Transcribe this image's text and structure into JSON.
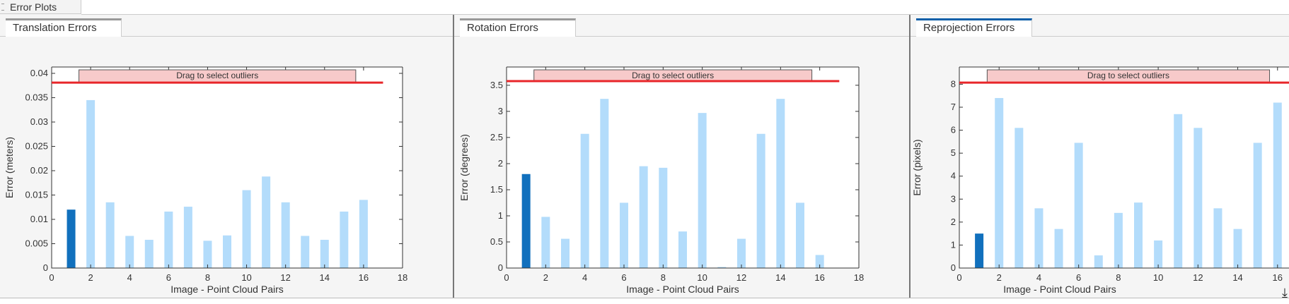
{
  "window": {
    "top_tab": "Error Plots"
  },
  "colors": {
    "selected_bar": "#1170bd",
    "bar": "#b3dcfb",
    "threshold": "#e8262a",
    "outlier_box": "#f7caca",
    "active_tab": "#0a5fa8"
  },
  "icons": {
    "download": "download-icon"
  },
  "chart_data": [
    {
      "tab": "Translation Errors",
      "type": "bar",
      "xlabel": "Image - Point Cloud Pairs",
      "ylabel": "Error (meters)",
      "xlim": [
        0,
        18
      ],
      "ylim": [
        0,
        0.0413
      ],
      "xticks": [
        "0",
        "2",
        "4",
        "6",
        "8",
        "10",
        "12",
        "14",
        "16",
        "18"
      ],
      "yticks": [
        "0",
        "0.005",
        "0.01",
        "0.015",
        "0.02",
        "0.025",
        "0.03",
        "0.035",
        "0.04"
      ],
      "categories": [
        1,
        2,
        3,
        4,
        5,
        6,
        7,
        8,
        9,
        10,
        11,
        12,
        13,
        14,
        15,
        16
      ],
      "values": [
        0.012,
        0.0345,
        0.0135,
        0.0066,
        0.0058,
        0.0116,
        0.0126,
        0.0056,
        0.0067,
        0.016,
        0.0188,
        0.0135,
        0.0066,
        0.0058,
        0.0116,
        0.014
      ],
      "selected": [
        1
      ],
      "threshold": 0.0381,
      "outlier_label": "Drag to select outliers",
      "grid": false
    },
    {
      "tab": "Rotation Errors",
      "type": "bar",
      "xlabel": "Image - Point Cloud Pairs",
      "ylabel": "Error (degrees)",
      "xlim": [
        0,
        18
      ],
      "ylim": [
        0,
        3.85
      ],
      "xticks": [
        "0",
        "2",
        "4",
        "6",
        "8",
        "10",
        "12",
        "14",
        "16",
        "18"
      ],
      "yticks": [
        "0",
        "0.5",
        "1",
        "1.5",
        "2",
        "2.5",
        "3",
        "3.5"
      ],
      "categories": [
        1,
        2,
        3,
        4,
        5,
        6,
        7,
        8,
        9,
        10,
        11,
        12,
        13,
        14,
        15,
        16
      ],
      "values": [
        1.8,
        0.98,
        0.56,
        2.57,
        3.24,
        1.25,
        1.95,
        1.92,
        0.7,
        2.97,
        0.02,
        0.56,
        2.57,
        3.24,
        1.25,
        0.25
      ],
      "selected": [
        1
      ],
      "threshold": 3.58,
      "outlier_label": "Drag to select outliers",
      "grid": false
    },
    {
      "tab": "Reprojection Errors",
      "type": "bar",
      "xlabel": "Image - Point Cloud Pairs",
      "ylabel": "Error (pixels)",
      "xlim": [
        0,
        18
      ],
      "ylim": [
        0,
        8.75
      ],
      "xticks": [
        "0",
        "2",
        "4",
        "6",
        "8",
        "10",
        "12",
        "14",
        "16"
      ],
      "yticks": [
        "0",
        "1",
        "2",
        "3",
        "4",
        "5",
        "6",
        "7",
        "8"
      ],
      "categories": [
        1,
        2,
        3,
        4,
        5,
        6,
        7,
        8,
        9,
        10,
        11,
        12,
        13,
        14,
        15,
        16
      ],
      "values": [
        1.5,
        7.4,
        6.1,
        2.6,
        1.7,
        5.45,
        0.55,
        2.4,
        2.85,
        1.2,
        6.7,
        6.1,
        2.6,
        1.7,
        5.45,
        7.2
      ],
      "selected": [
        1
      ],
      "threshold": 8.07,
      "outlier_label": "Drag to select outliers",
      "grid": false
    }
  ]
}
